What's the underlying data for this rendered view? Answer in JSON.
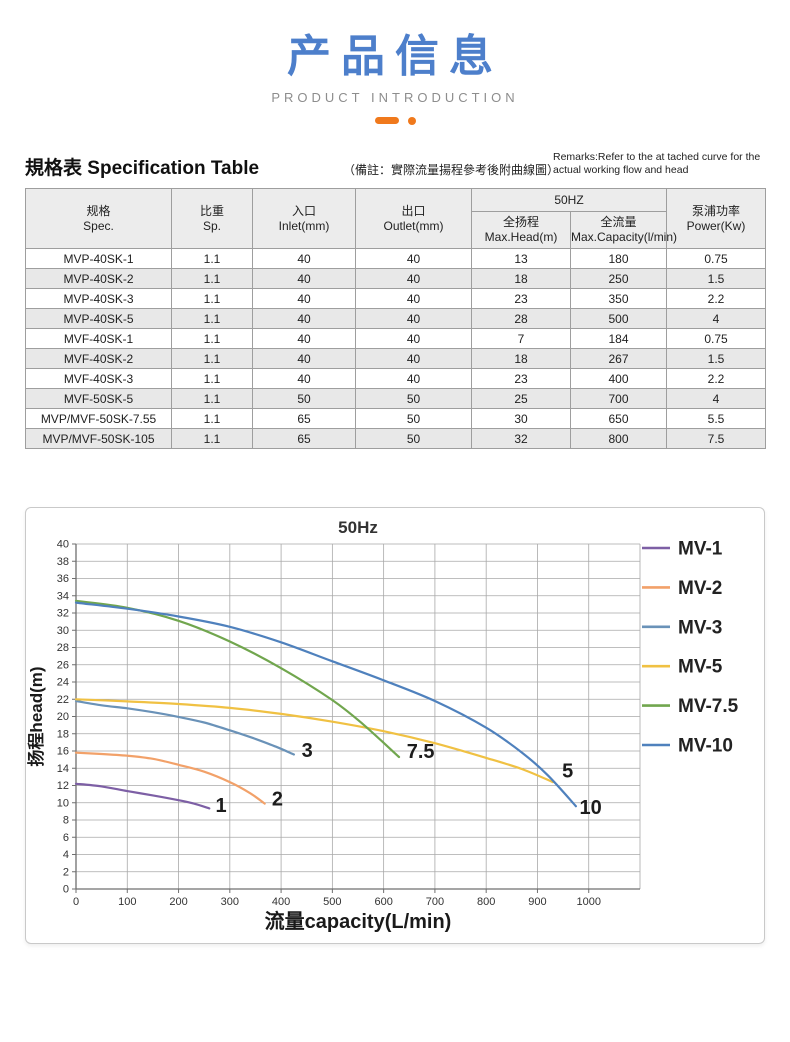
{
  "header": {
    "title_zh": "产品信息",
    "subtitle_en": "PRODUCT INTRODUCTION",
    "title_color": "#4d7fcb",
    "accent_color": "#f0791c"
  },
  "spec": {
    "title_zh": "規格表",
    "title_en": "Specification Table",
    "note_zh": "（備註：實際流量揚程參考後附曲線圖）",
    "remarks_en": "Remarks:Refer to the at tached curve for the actual working flow and head"
  },
  "table": {
    "group_label": "50HZ",
    "columns": [
      {
        "zh": "规格",
        "en": "Spec."
      },
      {
        "zh": "比重",
        "en": "Sp."
      },
      {
        "zh": "入口",
        "en": "Inlet(mm)"
      },
      {
        "zh": "出口",
        "en": "Outlet(mm)"
      },
      {
        "zh": "全扬程",
        "en": "Max.Head(m)"
      },
      {
        "zh": "全流量",
        "en": "Max.Capacity(l/min)"
      },
      {
        "zh": "泵浦功率",
        "en": "Power(Kw)"
      }
    ],
    "rows": [
      [
        "MVP-40SK-1",
        "1.1",
        "40",
        "40",
        "13",
        "180",
        "0.75"
      ],
      [
        "MVP-40SK-2",
        "1.1",
        "40",
        "40",
        "18",
        "250",
        "1.5"
      ],
      [
        "MVP-40SK-3",
        "1.1",
        "40",
        "40",
        "23",
        "350",
        "2.2"
      ],
      [
        "MVP-40SK-5",
        "1.1",
        "40",
        "40",
        "28",
        "500",
        "4"
      ],
      [
        "MVF-40SK-1",
        "1.1",
        "40",
        "40",
        "7",
        "184",
        "0.75"
      ],
      [
        "MVF-40SK-2",
        "1.1",
        "40",
        "40",
        "18",
        "267",
        "1.5"
      ],
      [
        "MVF-40SK-3",
        "1.1",
        "40",
        "40",
        "23",
        "400",
        "2.2"
      ],
      [
        "MVF-50SK-5",
        "1.1",
        "50",
        "50",
        "25",
        "700",
        "4"
      ],
      [
        "MVP/MVF-50SK-7.55",
        "1.1",
        "65",
        "50",
        "30",
        "650",
        "5.5"
      ],
      [
        "MVP/MVF-50SK-105",
        "1.1",
        "65",
        "50",
        "32",
        "800",
        "7.5"
      ]
    ]
  },
  "chart_data": {
    "type": "line",
    "title": "50Hz",
    "xlabel": "流量capacity(L/min)",
    "ylabel": "扬程head(m)",
    "xlim": [
      0,
      1100
    ],
    "ylim": [
      0,
      40
    ],
    "x_tick_step": 100,
    "x_label_max": 1000,
    "y_tick_step": 2,
    "grid": "on",
    "legend_position": "right",
    "grid_color": "#a9a9a9",
    "axis_color": "#6f6f6f",
    "series": [
      {
        "name": "MV-1",
        "color": "#7d5fa5",
        "end_label": "1",
        "label_x": 272,
        "label_y": 8.9,
        "points": [
          [
            0,
            12.2
          ],
          [
            50,
            11.9
          ],
          [
            100,
            11.35
          ],
          [
            150,
            10.85
          ],
          [
            200,
            10.3
          ],
          [
            230,
            9.9
          ],
          [
            260,
            9.35
          ]
        ]
      },
      {
        "name": "MV-2",
        "color": "#f2a169",
        "end_label": "2",
        "label_x": 382,
        "label_y": 9.7,
        "points": [
          [
            0,
            15.8
          ],
          [
            50,
            15.65
          ],
          [
            100,
            15.45
          ],
          [
            150,
            15.1
          ],
          [
            200,
            14.4
          ],
          [
            250,
            13.6
          ],
          [
            300,
            12.4
          ],
          [
            340,
            11.1
          ],
          [
            368,
            9.9
          ]
        ]
      },
      {
        "name": "MV-3",
        "color": "#6a92b8",
        "end_label": "3",
        "label_x": 440,
        "label_y": 15.3,
        "points": [
          [
            0,
            21.8
          ],
          [
            50,
            21.3
          ],
          [
            100,
            20.95
          ],
          [
            150,
            20.5
          ],
          [
            200,
            19.95
          ],
          [
            250,
            19.3
          ],
          [
            300,
            18.4
          ],
          [
            350,
            17.4
          ],
          [
            390,
            16.5
          ],
          [
            425,
            15.6
          ]
        ]
      },
      {
        "name": "MV-5",
        "color": "#f0c143",
        "end_label": "5",
        "label_x": 948,
        "label_y": 12.9,
        "points": [
          [
            0,
            22.0
          ],
          [
            100,
            21.75
          ],
          [
            200,
            21.45
          ],
          [
            300,
            21.0
          ],
          [
            400,
            20.3
          ],
          [
            500,
            19.4
          ],
          [
            600,
            18.3
          ],
          [
            700,
            16.9
          ],
          [
            800,
            15.2
          ],
          [
            870,
            13.9
          ],
          [
            930,
            12.4
          ]
        ]
      },
      {
        "name": "MV-7.5",
        "color": "#71a64e",
        "end_label": "7.5",
        "label_x": 645,
        "label_y": 15.2,
        "points": [
          [
            0,
            33.4
          ],
          [
            100,
            32.6
          ],
          [
            200,
            31.1
          ],
          [
            300,
            28.7
          ],
          [
            400,
            25.6
          ],
          [
            500,
            21.9
          ],
          [
            560,
            19.1
          ],
          [
            630,
            15.3
          ]
        ]
      },
      {
        "name": "MV-10",
        "color": "#4f81bd",
        "end_label": "10",
        "label_x": 982,
        "label_y": 8.7,
        "points": [
          [
            0,
            33.2
          ],
          [
            100,
            32.5
          ],
          [
            200,
            31.6
          ],
          [
            300,
            30.4
          ],
          [
            400,
            28.6
          ],
          [
            500,
            26.4
          ],
          [
            600,
            24.2
          ],
          [
            700,
            21.8
          ],
          [
            800,
            18.7
          ],
          [
            870,
            15.8
          ],
          [
            920,
            13.2
          ],
          [
            975,
            9.6
          ]
        ]
      }
    ]
  }
}
